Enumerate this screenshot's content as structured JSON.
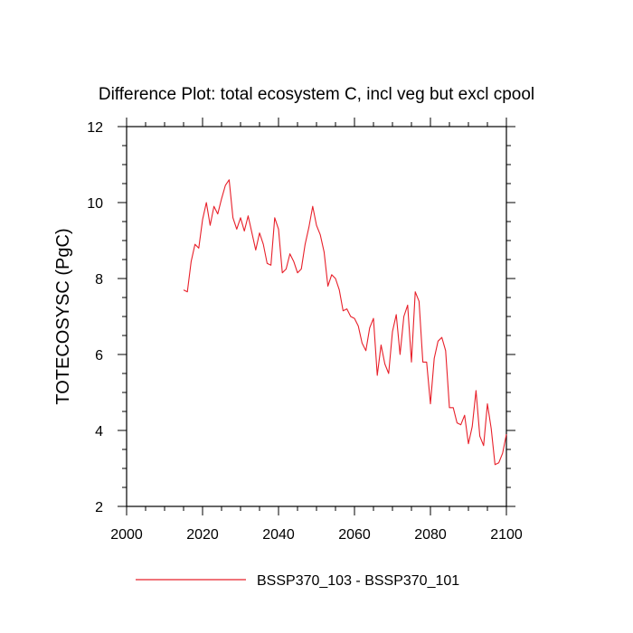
{
  "chart_data": {
    "type": "line",
    "title": "Difference Plot: total ecosystem C, incl veg but excl cpool",
    "xlabel": "",
    "ylabel": "TOTECOSYSC  (PgC)",
    "xlim": [
      2000,
      2100
    ],
    "ylim": [
      2,
      12
    ],
    "x_ticks": [
      2000,
      2020,
      2040,
      2060,
      2080,
      2100
    ],
    "y_ticks": [
      2,
      4,
      6,
      8,
      10,
      12
    ],
    "x_tick_labels": [
      "2000",
      "2020",
      "2040",
      "2060",
      "2080",
      "2100"
    ],
    "y_tick_labels": [
      "2",
      "4",
      "6",
      "8",
      "10",
      "12"
    ],
    "grid": false,
    "legend_position": "bottom-center",
    "series": [
      {
        "name": "BSSP370_103 - BSSP370_101",
        "color": "#e8202a",
        "x": [
          2015,
          2016,
          2017,
          2018,
          2019,
          2020,
          2021,
          2022,
          2023,
          2024,
          2025,
          2026,
          2027,
          2028,
          2029,
          2030,
          2031,
          2032,
          2033,
          2034,
          2035,
          2036,
          2037,
          2038,
          2039,
          2040,
          2041,
          2042,
          2043,
          2044,
          2045,
          2046,
          2047,
          2048,
          2049,
          2050,
          2051,
          2052,
          2053,
          2054,
          2055,
          2056,
          2057,
          2058,
          2059,
          2060,
          2061,
          2062,
          2063,
          2064,
          2065,
          2066,
          2067,
          2068,
          2069,
          2070,
          2071,
          2072,
          2073,
          2074,
          2075,
          2076,
          2077,
          2078,
          2079,
          2080,
          2081,
          2082,
          2083,
          2084,
          2085,
          2086,
          2087,
          2088,
          2089,
          2090,
          2091,
          2092,
          2093,
          2094,
          2095,
          2096,
          2097,
          2098,
          2099,
          2100
        ],
        "values": [
          7.7,
          7.65,
          8.45,
          8.9,
          8.8,
          9.55,
          10.0,
          9.4,
          9.9,
          9.7,
          10.1,
          10.45,
          10.6,
          9.6,
          9.3,
          9.6,
          9.25,
          9.65,
          9.2,
          8.75,
          9.2,
          8.9,
          8.4,
          8.35,
          9.6,
          9.3,
          8.15,
          8.25,
          8.65,
          8.45,
          8.15,
          8.25,
          8.9,
          9.35,
          9.9,
          9.4,
          9.15,
          8.7,
          7.8,
          8.1,
          8.0,
          7.7,
          7.15,
          7.2,
          7.0,
          6.95,
          6.75,
          6.3,
          6.1,
          6.7,
          6.95,
          5.45,
          6.25,
          5.75,
          5.5,
          6.6,
          7.05,
          6.0,
          7.0,
          7.3,
          5.8,
          7.65,
          7.4,
          5.8,
          5.8,
          4.7,
          5.9,
          6.35,
          6.45,
          6.1,
          4.6,
          4.6,
          4.2,
          4.15,
          4.4,
          3.65,
          4.1,
          5.05,
          3.85,
          3.6,
          4.7,
          4.05,
          3.1,
          3.15,
          3.4,
          3.9
        ]
      }
    ]
  }
}
